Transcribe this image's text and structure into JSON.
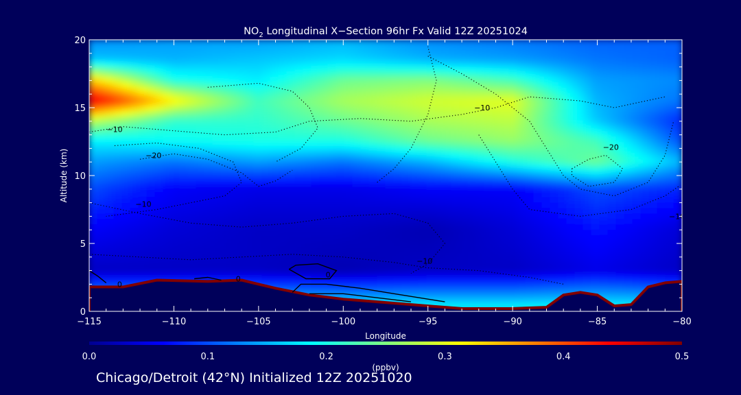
{
  "chart_data": {
    "type": "heatmap",
    "title": {
      "species": "NO",
      "species_sub": "2",
      "rest": " Longitudinal X−Section 96hr  Fx Valid 12Z 20251024"
    },
    "xlabel": "Longitude",
    "ylabel": "Altitude (km)",
    "xlim": [
      -115,
      -80
    ],
    "ylim": [
      0,
      20
    ],
    "x_ticks": [
      -115,
      -110,
      -105,
      -100,
      -95,
      -90,
      -85,
      -80
    ],
    "x_tick_labels": [
      "−115",
      "−110",
      "−105",
      "−100",
      "−95",
      "−90",
      "−85",
      "−80"
    ],
    "y_ticks": [
      0,
      5,
      10,
      15,
      20
    ],
    "y_tick_labels": [
      "0",
      "5",
      "10",
      "15",
      "20"
    ],
    "colorbar": {
      "label": "(ppbv)",
      "range": [
        0.0,
        0.5
      ],
      "ticks": [
        0.0,
        0.1,
        0.2,
        0.3,
        0.4,
        0.5
      ],
      "tick_labels": [
        "0.0",
        "0.1",
        "0.2",
        "0.3",
        "0.4",
        "0.5"
      ],
      "colors": [
        "#00008f",
        "#0000ff",
        "#0080ff",
        "#00ffff",
        "#80ff80",
        "#ffff00",
        "#ff8000",
        "#ff0000",
        "#800000"
      ]
    },
    "terrain_colors": {
      "ground": "#00005a",
      "surface": "#800000"
    },
    "field_description_note_removed": true,
    "bands": [
      {
        "alt": 0.0,
        "vals": [
          0.2,
          0.2,
          0.2,
          0.2,
          0.2,
          0.2,
          0.2,
          0.2
        ]
      },
      {
        "alt": 3.0,
        "vals": [
          0.03,
          0.03,
          0.03,
          0.02,
          0.03,
          0.03,
          0.05,
          0.03
        ]
      },
      {
        "alt": 6.0,
        "vals": [
          0.06,
          0.04,
          0.03,
          0.03,
          0.02,
          0.04,
          0.07,
          0.04
        ]
      },
      {
        "alt": 9.0,
        "vals": [
          0.1,
          0.06,
          0.05,
          0.05,
          0.06,
          0.06,
          0.1,
          0.08
        ]
      },
      {
        "alt": 11.0,
        "vals": [
          0.14,
          0.12,
          0.14,
          0.12,
          0.15,
          0.2,
          0.24,
          0.15
        ]
      },
      {
        "alt": 12.5,
        "vals": [
          0.18,
          0.19,
          0.2,
          0.2,
          0.24,
          0.26,
          0.22,
          0.1
        ]
      },
      {
        "alt": 14.0,
        "vals": [
          0.28,
          0.21,
          0.21,
          0.24,
          0.27,
          0.28,
          0.16,
          0.08
        ]
      },
      {
        "alt": 15.5,
        "vals": [
          0.46,
          0.32,
          0.22,
          0.27,
          0.29,
          0.3,
          0.15,
          0.12
        ]
      },
      {
        "alt": 17.0,
        "vals": [
          0.34,
          0.2,
          0.18,
          0.24,
          0.25,
          0.22,
          0.14,
          0.13
        ]
      },
      {
        "alt": 18.5,
        "vals": [
          0.16,
          0.15,
          0.16,
          0.17,
          0.15,
          0.14,
          0.12,
          0.11
        ]
      },
      {
        "alt": 20.0,
        "vals": [
          0.13,
          0.14,
          0.14,
          0.15,
          0.13,
          0.12,
          0.11,
          0.11
        ]
      }
    ],
    "surface_altitude": [
      [
        -115,
        1.8
      ],
      [
        -113,
        1.8
      ],
      [
        -111,
        2.3
      ],
      [
        -108,
        2.2
      ],
      [
        -106,
        2.3
      ],
      [
        -104,
        1.7
      ],
      [
        -102,
        1.2
      ],
      [
        -100,
        0.9
      ],
      [
        -97,
        0.6
      ],
      [
        -95,
        0.4
      ],
      [
        -93,
        0.2
      ],
      [
        -90,
        0.2
      ],
      [
        -88,
        0.3
      ],
      [
        -87,
        1.2
      ],
      [
        -86,
        1.4
      ],
      [
        -85,
        1.2
      ],
      [
        -84,
        0.4
      ],
      [
        -83,
        0.5
      ],
      [
        -82,
        1.8
      ],
      [
        -81,
        2.1
      ],
      [
        -80,
        2.2
      ]
    ],
    "contour_labels": [
      {
        "text": "−10",
        "x": -113.5,
        "y": 13.2
      },
      {
        "text": "−20",
        "x": -111.2,
        "y": 11.3
      },
      {
        "text": "−10",
        "x": -111.8,
        "y": 7.7
      },
      {
        "text": "−10",
        "x": -91.8,
        "y": 14.8
      },
      {
        "text": "−20",
        "x": -84.2,
        "y": 11.9
      },
      {
        "text": "0",
        "x": -113.2,
        "y": 1.8
      },
      {
        "text": "0",
        "x": -100.9,
        "y": 2.5
      },
      {
        "text": "0",
        "x": -106.2,
        "y": 2.2
      },
      {
        "text": "−10",
        "x": -95.2,
        "y": 3.5
      },
      {
        "text": "−10",
        "x": -80.3,
        "y": 6.8
      }
    ],
    "contours": [
      {
        "style": "dotted",
        "points": [
          [
            -115,
            13.2
          ],
          [
            -113,
            13.6
          ],
          [
            -110,
            13.3
          ],
          [
            -107,
            13.0
          ],
          [
            -104,
            13.2
          ],
          [
            -102,
            14.0
          ],
          [
            -99,
            14.2
          ],
          [
            -96,
            14.0
          ],
          [
            -93,
            14.5
          ],
          [
            -91,
            15.0
          ],
          [
            -89,
            15.8
          ],
          [
            -86,
            15.5
          ],
          [
            -84,
            15.0
          ],
          [
            -81,
            15.8
          ]
        ]
      },
      {
        "style": "dotted",
        "points": [
          [
            -112,
            11.2
          ],
          [
            -110,
            11.6
          ],
          [
            -108,
            11.2
          ],
          [
            -106,
            10.2
          ],
          [
            -105,
            9.2
          ],
          [
            -104,
            9.6
          ],
          [
            -103,
            10.4
          ]
        ]
      },
      {
        "style": "dotted",
        "points": [
          [
            -113.5,
            12.2
          ],
          [
            -111,
            12.4
          ],
          [
            -108.5,
            12.0
          ],
          [
            -106.5,
            11.0
          ],
          [
            -106,
            9.5
          ],
          [
            -107,
            8.5
          ],
          [
            -109,
            8.0
          ],
          [
            -111,
            7.5
          ],
          [
            -114,
            7.0
          ]
        ]
      },
      {
        "style": "dotted",
        "points": [
          [
            -108,
            16.5
          ],
          [
            -105,
            16.8
          ],
          [
            -103,
            16.2
          ],
          [
            -102,
            15.0
          ],
          [
            -101.5,
            13.5
          ],
          [
            -102.5,
            12.0
          ],
          [
            -104,
            11.0
          ]
        ]
      },
      {
        "style": "dotted",
        "points": [
          [
            -95,
            18.8
          ],
          [
            -93,
            17.5
          ],
          [
            -91,
            16.0
          ],
          [
            -89,
            14.0
          ],
          [
            -88,
            12.0
          ],
          [
            -87,
            10.0
          ],
          [
            -86,
            9.0
          ],
          [
            -84,
            8.5
          ],
          [
            -82,
            9.5
          ],
          [
            -81,
            11.5
          ],
          [
            -80.5,
            14.0
          ]
        ]
      },
      {
        "style": "dotted",
        "points": [
          [
            -86.5,
            10.5
          ],
          [
            -85.5,
            11.2
          ],
          [
            -84.5,
            11.5
          ],
          [
            -83.5,
            10.5
          ],
          [
            -84,
            9.5
          ],
          [
            -85.5,
            9.2
          ],
          [
            -86.5,
            10.0
          ],
          [
            -86.5,
            10.5
          ]
        ]
      },
      {
        "style": "dotted",
        "points": [
          [
            -92,
            13.0
          ],
          [
            -91,
            11.0
          ],
          [
            -90,
            9.0
          ],
          [
            -89,
            7.5
          ],
          [
            -86,
            7.0
          ],
          [
            -83,
            7.5
          ],
          [
            -81,
            8.5
          ],
          [
            -80.2,
            9.2
          ]
        ]
      },
      {
        "style": "dotted",
        "points": [
          [
            -115,
            8.0
          ],
          [
            -112,
            7.2
          ],
          [
            -109,
            6.5
          ],
          [
            -106,
            6.2
          ],
          [
            -103,
            6.5
          ],
          [
            -100,
            7.0
          ],
          [
            -97,
            7.2
          ],
          [
            -95,
            6.5
          ],
          [
            -94,
            5.0
          ],
          [
            -95,
            3.5
          ],
          [
            -96,
            2.8
          ]
        ]
      },
      {
        "style": "dotted",
        "points": [
          [
            -115,
            4.2
          ],
          [
            -112,
            4.0
          ],
          [
            -109,
            3.8
          ],
          [
            -106,
            4.0
          ],
          [
            -103,
            4.2
          ],
          [
            -100,
            4.0
          ],
          [
            -97,
            3.6
          ],
          [
            -95,
            3.2
          ],
          [
            -92,
            3.0
          ],
          [
            -89,
            2.5
          ],
          [
            -87,
            2.0
          ]
        ]
      },
      {
        "style": "dotted",
        "points": [
          [
            -98,
            9.5
          ],
          [
            -97,
            10.5
          ],
          [
            -96,
            12.0
          ],
          [
            -95,
            14.5
          ],
          [
            -94.5,
            17.0
          ],
          [
            -95,
            19.5
          ]
        ]
      },
      {
        "style": "solid",
        "points": [
          [
            -115,
            3.0
          ],
          [
            -114.5,
            2.6
          ],
          [
            -114,
            2.1
          ]
        ]
      },
      {
        "style": "solid",
        "points": [
          [
            -103.2,
            3.1
          ],
          [
            -102.8,
            3.4
          ],
          [
            -101.5,
            3.5
          ],
          [
            -100.4,
            3.0
          ],
          [
            -100.8,
            2.4
          ],
          [
            -102.2,
            2.4
          ],
          [
            -103.2,
            3.1
          ]
        ]
      },
      {
        "style": "solid",
        "points": [
          [
            -103,
            1.4
          ],
          [
            -102.5,
            2.0
          ],
          [
            -101,
            2.0
          ],
          [
            -99,
            1.7
          ],
          [
            -97,
            1.3
          ],
          [
            -95,
            0.9
          ],
          [
            -94,
            0.7
          ]
        ]
      },
      {
        "style": "solid",
        "points": [
          [
            -102,
            1.3
          ],
          [
            -100,
            1.3
          ],
          [
            -98,
            1.0
          ],
          [
            -96,
            0.7
          ]
        ]
      },
      {
        "style": "solid",
        "points": [
          [
            -108.8,
            2.4
          ],
          [
            -108,
            2.5
          ],
          [
            -107.2,
            2.3
          ]
        ]
      }
    ]
  },
  "footer": "Chicago/Detroit (42°N) Initialized 12Z 20251020"
}
